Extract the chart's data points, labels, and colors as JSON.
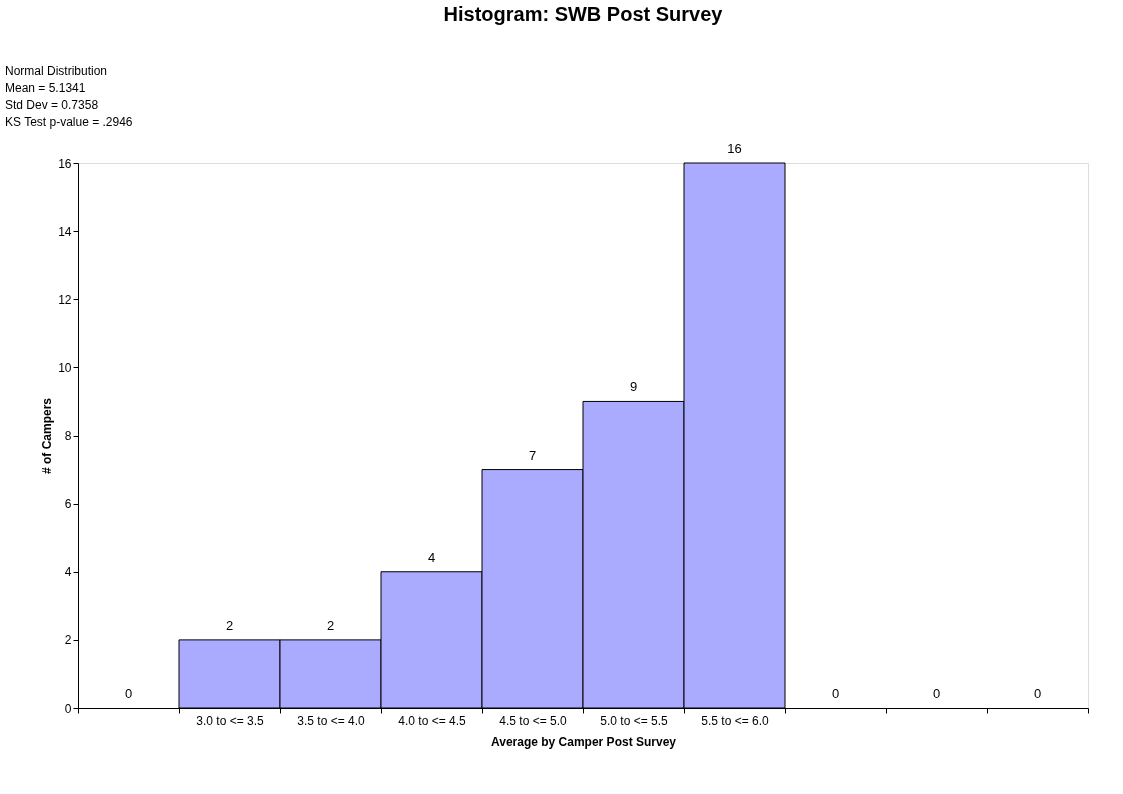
{
  "chart_data": {
    "type": "bar",
    "title": "Histogram: SWB Post Survey",
    "xlabel": "Average by Camper Post Survey",
    "ylabel": "# of Campers",
    "categories": [
      null,
      "3.0 to <= 3.5",
      "3.5 to <= 4.0",
      "4.0 to <= 4.5",
      "4.5 to <= 5.0",
      "5.0 to <= 5.5",
      "5.5 to <= 6.0",
      null,
      null,
      null
    ],
    "values": [
      0,
      2,
      2,
      4,
      7,
      9,
      16,
      0,
      0,
      0
    ],
    "color": "#aaaaff",
    "ylim": [
      0,
      16
    ],
    "yticks": [
      0,
      2,
      4,
      6,
      8,
      10,
      12,
      14,
      16
    ],
    "data_labels": true,
    "grid": false,
    "annotations": [
      "Normal Distribution",
      "Mean = 5.1341",
      "Std Dev = 0.7358",
      "KS Test p-value = .2946"
    ]
  }
}
